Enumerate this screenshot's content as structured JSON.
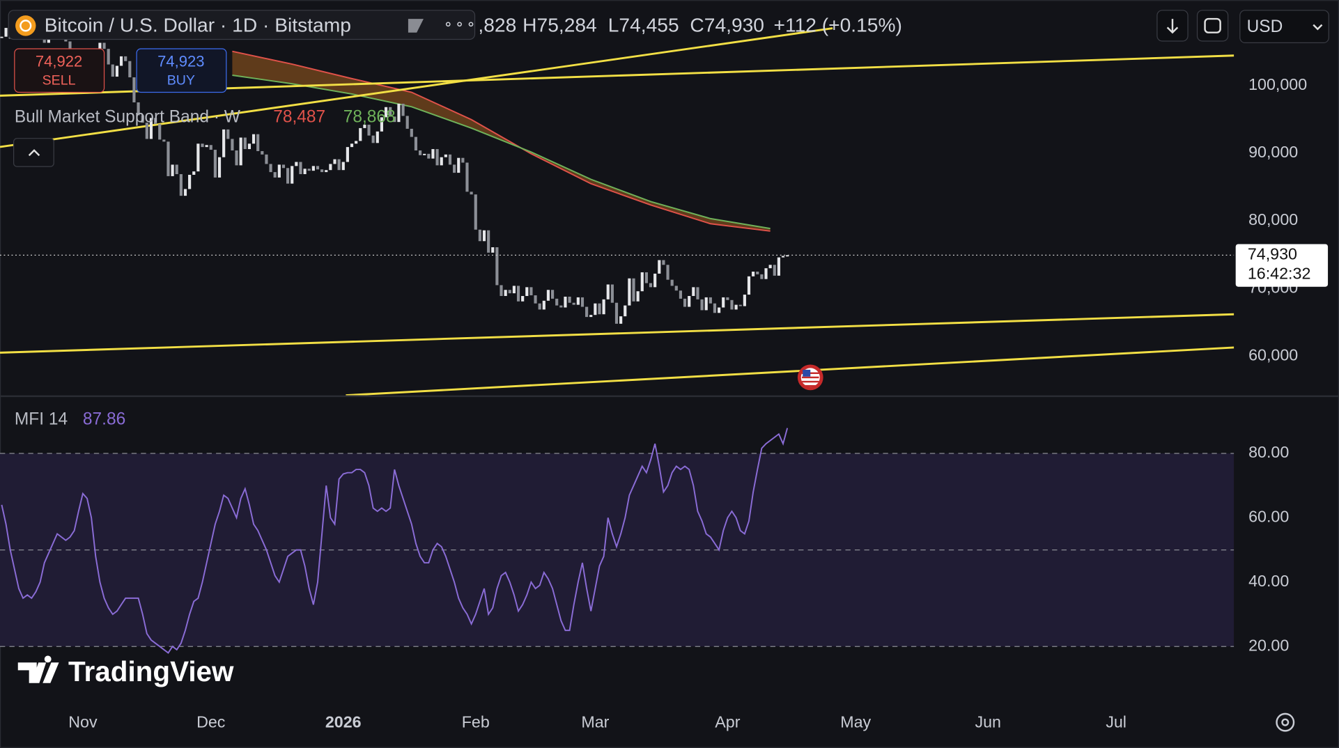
{
  "chart_data": {
    "type": "candlestick",
    "title": "Bitcoin / U.S. Dollar · 1D · Bitstamp",
    "ohlc_header": {
      "open_partial": ",828",
      "high": "H75,284",
      "low": "L74,455",
      "close": "C74,930",
      "change": "+112 (+0.15%)"
    },
    "sell": {
      "price": "74,922",
      "label": "SELL"
    },
    "buy": {
      "price": "74,923",
      "label": "BUY"
    },
    "currency": "USD",
    "up_color": "#e6e7ea",
    "down_color": "#8c8f96",
    "close": [
      107200,
      108500,
      106900,
      108100,
      109600,
      110300,
      111000,
      110400,
      107500,
      108200,
      106300,
      107800,
      109800,
      110600,
      110100,
      106500,
      104700,
      103900,
      103500,
      101400,
      101800,
      103300,
      104700,
      106300,
      105400,
      103100,
      101300,
      102900,
      104300,
      103600,
      101200,
      97500,
      95600,
      94500,
      92100,
      95200,
      94300,
      92000,
      91700,
      86600,
      88300,
      86900,
      83700,
      84700,
      86800,
      87300,
      91400,
      90900,
      91200,
      90500,
      86400,
      89400,
      93500,
      92100,
      90400,
      88200,
      92300,
      90600,
      91400,
      92800,
      90300,
      89800,
      88400,
      87200,
      86400,
      88300,
      87800,
      85500,
      88100,
      88700,
      86900,
      87700,
      87400,
      88100,
      87600,
      87200,
      87500,
      88400,
      89100,
      87500,
      88700,
      90900,
      91400,
      91800,
      93700,
      94200,
      92600,
      91500,
      93200,
      95300,
      96800,
      95400,
      94600,
      97300,
      95500,
      93600,
      92400,
      90400,
      89700,
      89900,
      89200,
      90600,
      88200,
      89400,
      89800,
      88300,
      87100,
      89300,
      88600,
      84300,
      83900,
      78700,
      77000,
      78600,
      75300,
      76100,
      70500,
      68900,
      69800,
      69300,
      70400,
      68100,
      68900,
      70200,
      69000,
      67800,
      66900,
      68200,
      69800,
      68500,
      67500,
      67200,
      68800,
      67900,
      67600,
      68700,
      67300,
      65800,
      66100,
      67800,
      66200,
      68400,
      70600,
      67900,
      64800,
      65900,
      67500,
      71500,
      68100,
      69600,
      72400,
      70800,
      70200,
      72200,
      74200,
      73500,
      71300,
      70400,
      69700,
      68500,
      67300,
      68900,
      70200,
      68400,
      66800,
      68700,
      67800,
      66400,
      67200,
      68700,
      68300,
      66900,
      67600,
      67400,
      69100,
      71800,
      72500,
      72100,
      71400,
      73000,
      73500,
      71900,
      74600,
      74818,
      74930
    ],
    "xlim": [
      -0.4,
      288.6
    ],
    "xticks": [
      {
        "value": 19,
        "label": "Nov"
      },
      {
        "value": 49,
        "label": "Dec"
      },
      {
        "value": 80,
        "label": "2026"
      },
      {
        "value": 111,
        "label": "Feb"
      },
      {
        "value": 139,
        "label": "Mar"
      },
      {
        "value": 170,
        "label": "Apr"
      },
      {
        "value": 200,
        "label": "May"
      },
      {
        "value": 231,
        "label": "Jun"
      },
      {
        "value": 261,
        "label": "Jul"
      }
    ],
    "bold_xticks": [
      2
    ],
    "ylim": [
      54224,
      112610
    ],
    "yticks": [
      {
        "value": 60000,
        "label": "60,000"
      },
      {
        "value": 70000,
        "label": "70,000"
      },
      {
        "value": 80000,
        "label": "80,000"
      },
      {
        "value": 90000,
        "label": "90,000"
      },
      {
        "value": 100000,
        "label": "100,000"
      }
    ],
    "last_price": {
      "value": 74930,
      "label": "74,930",
      "time": "16:42:32"
    },
    "band": {
      "name": "Bull Market Support Band · W",
      "x": [
        54,
        68,
        82,
        96,
        110,
        124,
        138,
        152,
        166,
        180
      ],
      "fill_color": "#7a4a1c",
      "lines": [
        {
          "color": "#e0524a",
          "value_label": "78,487",
          "values": [
            105045,
            103150,
            101010,
            98990,
            94955,
            89910,
            85490,
            82340,
            79570,
            78487
          ]
        },
        {
          "color": "#6fb25a",
          "value_label": "78,868",
          "values": [
            101510,
            100250,
            98740,
            96850,
            93700,
            90160,
            86130,
            82850,
            80330,
            78868
          ]
        }
      ]
    },
    "trendline_color": "#f2df45",
    "trendlines": [
      {
        "x": [
          -0.4,
          288.6
        ],
        "values": [
          98487,
          104414
        ]
      },
      {
        "x": [
          -0.4,
          194.6
        ],
        "values": [
          90920,
          108450
        ]
      },
      {
        "x": [
          -0.4,
          288.6
        ],
        "values": [
          60530,
          66200
        ]
      },
      {
        "x": [
          80.6,
          288.6
        ],
        "values": [
          54225,
          61290
        ]
      }
    ],
    "mfi": {
      "name": "MFI 14",
      "value_label": "87.86",
      "color": "#8a6cd6",
      "band_color": "#201c34",
      "ylim": [
        2.8,
        97.5
      ],
      "yticks": [
        {
          "value": 20,
          "label": "20.00"
        },
        {
          "value": 40,
          "label": "40.00"
        },
        {
          "value": 60,
          "label": "60.00"
        },
        {
          "value": 80,
          "label": "80.00"
        }
      ],
      "band": [
        20,
        80
      ],
      "middle": 50,
      "values": [
        64,
        58,
        50,
        44,
        38,
        35,
        36,
        35,
        37,
        40,
        46,
        49,
        52,
        55,
        54,
        53,
        54,
        56,
        62,
        67.5,
        66,
        60,
        48,
        40,
        35,
        32,
        30,
        31,
        33,
        35,
        35,
        35,
        35,
        30,
        24,
        22,
        21,
        20,
        19,
        18,
        20,
        19,
        21,
        25,
        30,
        34,
        35,
        40,
        46,
        52,
        58,
        62,
        67,
        66,
        63,
        60,
        66,
        69,
        64,
        58,
        56,
        53,
        50,
        46,
        42,
        40,
        44,
        48,
        49,
        50,
        50,
        45,
        38,
        33,
        40,
        55,
        70,
        60,
        58,
        72,
        73.6,
        74,
        74,
        75,
        75,
        74,
        70,
        63,
        62,
        63,
        62,
        63,
        75,
        70,
        66,
        62,
        58,
        52,
        48,
        46,
        46,
        50,
        52,
        51,
        48,
        44,
        40,
        35,
        32,
        30,
        27,
        30,
        34,
        38,
        30,
        32,
        38,
        42,
        43,
        40,
        36,
        31,
        33,
        36,
        40,
        38,
        39,
        43,
        41,
        38,
        33,
        28,
        25,
        25,
        33,
        40,
        46,
        38,
        31,
        38,
        45,
        48,
        60,
        55,
        51,
        55,
        60,
        67,
        70,
        73,
        76,
        74,
        78,
        83,
        76,
        68,
        70,
        74,
        76,
        75,
        76,
        75,
        70,
        62,
        59,
        55,
        54,
        52,
        50,
        56,
        60,
        62,
        60,
        56,
        55,
        59,
        68,
        75,
        81.6,
        83,
        84,
        85,
        86,
        83,
        87.86
      ]
    },
    "watermark": "TradingView"
  }
}
